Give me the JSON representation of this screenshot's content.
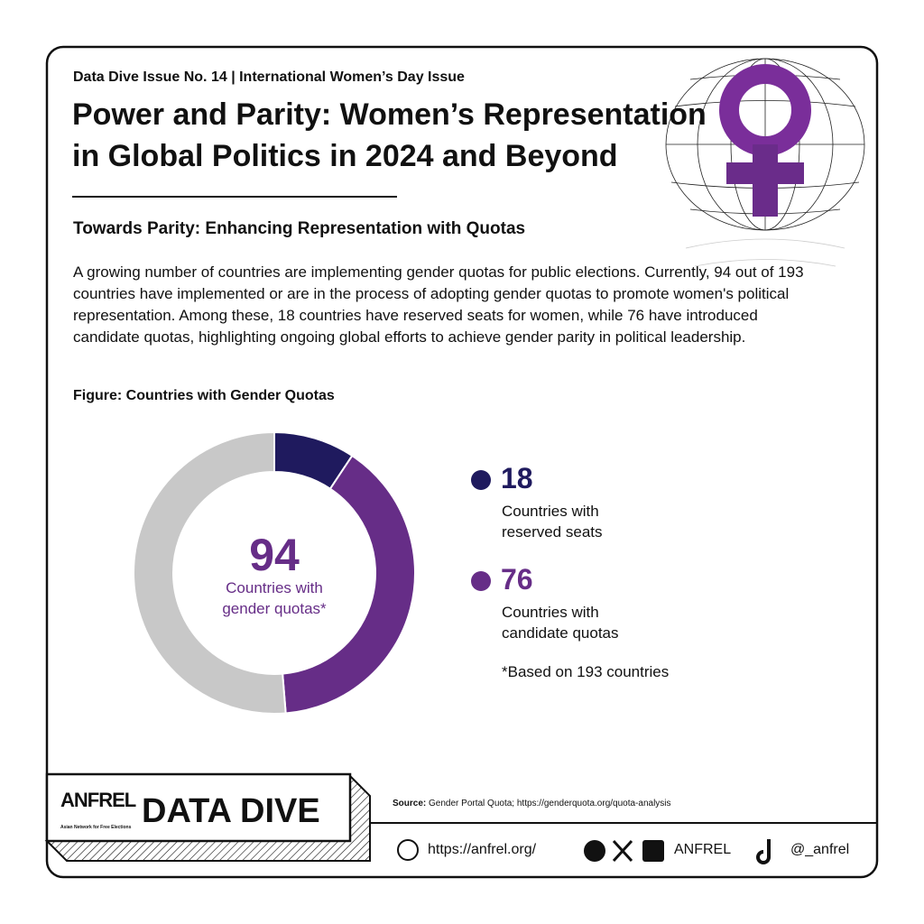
{
  "header": {
    "issue": "Data Dive Issue No. 14 | International Women’s Day Issue",
    "title_lines": [
      "Power and Parity: Women’s Representation",
      "in Global Politics in 2024 and Beyond"
    ]
  },
  "section": {
    "heading": "Towards Parity: Enhancing Representation with Quotas",
    "body": "A growing number of countries are implementing gender quotas for public elections. Currently, 94 out of 193 countries have implemented or are in the process of adopting gender quotas to promote women's political representation. Among these, 18 countries have reserved seats for women, while 76 have introduced candidate quotas, highlighting ongoing global efforts to achieve gender parity in political leadership."
  },
  "chart_data": {
    "type": "donut",
    "title": "Figure: Countries with Gender Quotas",
    "categories": [
      "Countries with reserved seats",
      "Countries with candidate quotas",
      null
    ],
    "values": [
      18,
      76,
      99
    ],
    "colors": [
      "#1f1a5e",
      "#662d87",
      "#c8c8c8"
    ],
    "center_value": 94,
    "center_label": "Countries with gender quotas*",
    "note": "*Based on 193 countries"
  },
  "footer": {
    "logo": "ANFREL",
    "logo_sub": "Asian Network for Free Elections",
    "brand": "DATA DIVE",
    "source_label": "Source:",
    "source": "Gender Portal Quota; https://genderquota.org/quota-analysis",
    "website": "https://anfrel.org/",
    "social": "ANFREL",
    "tiktok": "@_anfrel"
  }
}
